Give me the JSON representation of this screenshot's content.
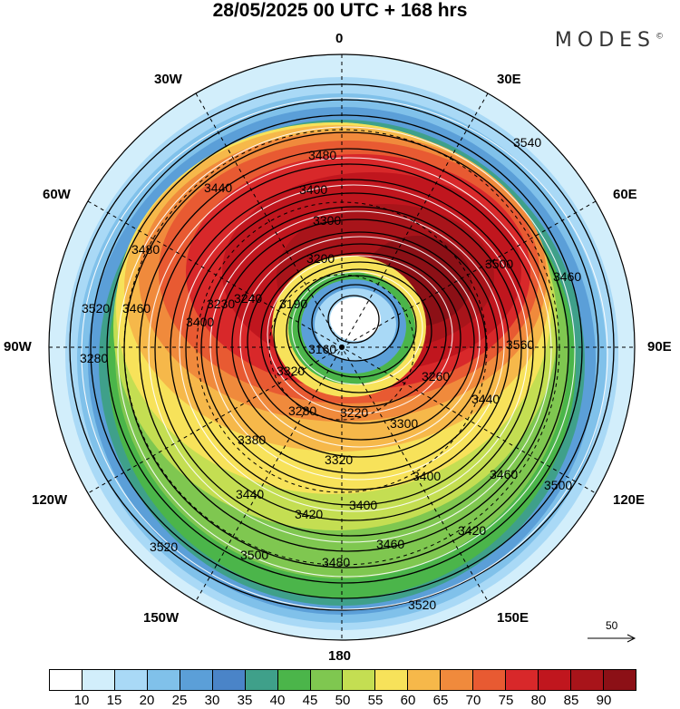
{
  "title": "28/05/2025  00 UTC  + 168 hrs",
  "brand": "MODES",
  "brand_mark": "©",
  "longitude_labels": {
    "lon_0": "0",
    "lon_30e": "30E",
    "lon_60e": "60E",
    "lon_90e": "90E",
    "lon_120e": "120E",
    "lon_150e": "150E",
    "lon_180": "180",
    "lon_150w": "150W",
    "lon_120w": "120W",
    "lon_90w": "90W",
    "lon_60w": "60W",
    "lon_30w": "30W"
  },
  "contour_labels": [
    "3540",
    "3480",
    "3460",
    "3440",
    "3400",
    "3300",
    "3200",
    "3190",
    "3160",
    "3220",
    "3240",
    "3280",
    "3320",
    "3380",
    "3400",
    "3420",
    "3440",
    "3460",
    "3480",
    "3500",
    "3520",
    "3520",
    "3500",
    "3480",
    "3460",
    "3400",
    "3520",
    "3500",
    "3560",
    "3230",
    "3260",
    "3300",
    "3460",
    "3440",
    "3420",
    "3400",
    "3320",
    "3280"
  ],
  "wind_reference": "50",
  "colorbar": {
    "colors": [
      "#ffffff",
      "#d2eefb",
      "#a9d9f6",
      "#80c1ea",
      "#5b9fd8",
      "#4a84c8",
      "#3fa08a",
      "#4bb54a",
      "#7fc750",
      "#c4de52",
      "#f7e25a",
      "#f6b84a",
      "#f08a3c",
      "#e85a32",
      "#d8282a",
      "#c0161e",
      "#a8141a",
      "#8c1016"
    ],
    "ticks": [
      "10",
      "15",
      "20",
      "25",
      "30",
      "35",
      "40",
      "45",
      "50",
      "55",
      "60",
      "65",
      "70",
      "75",
      "80",
      "85",
      "90"
    ]
  }
}
